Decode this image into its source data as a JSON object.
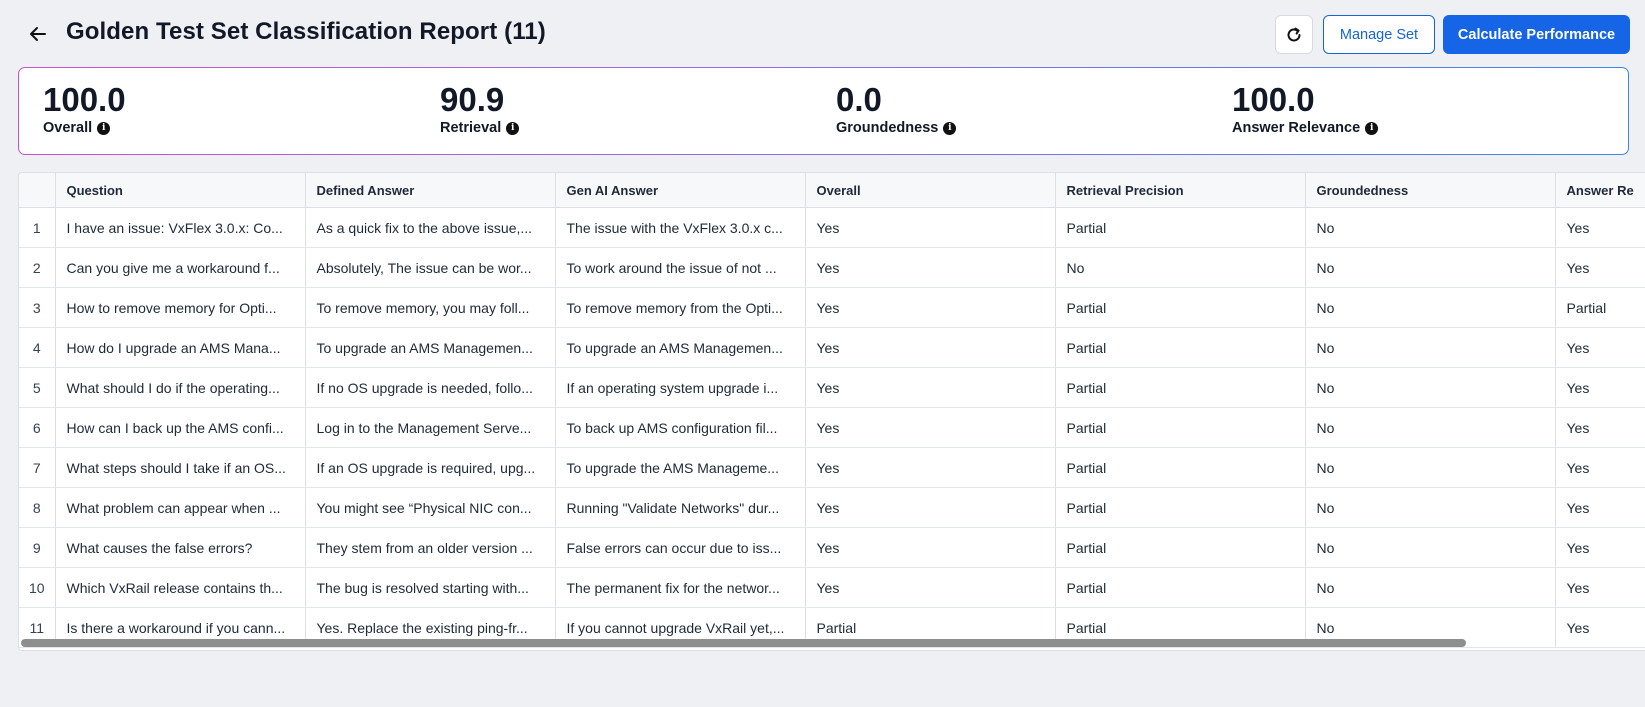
{
  "header": {
    "title": "Golden Test Set Classification Report (11)",
    "manage_label": "Manage Set",
    "calculate_label": "Calculate Performance"
  },
  "metrics": [
    {
      "value": "100.0",
      "label": "Overall"
    },
    {
      "value": "90.9",
      "label": "Retrieval"
    },
    {
      "value": "0.0",
      "label": "Groundedness"
    },
    {
      "value": "100.0",
      "label": "Answer Relevance"
    }
  ],
  "table": {
    "columns": [
      "",
      "Question",
      "Defined Answer",
      "Gen AI Answer",
      "Overall",
      "Retrieval Precision",
      "Groundedness",
      "Answer Re"
    ],
    "rows": [
      {
        "n": "1",
        "question": "I have an issue: VxFlex 3.0.x: Co...",
        "defined": "As a quick fix to the above issue,...",
        "gen": "The issue with the VxFlex 3.0.x c...",
        "overall": "Yes",
        "retrieval": "Partial",
        "ground": "No",
        "relevance": "Yes"
      },
      {
        "n": "2",
        "question": "Can you give me a workaround f...",
        "defined": "Absolutely, The issue can be wor...",
        "gen": "To work around the issue of not ...",
        "overall": "Yes",
        "retrieval": "No",
        "ground": "No",
        "relevance": "Yes"
      },
      {
        "n": "3",
        "question": "How to remove memory for Opti...",
        "defined": "To remove memory, you may foll...",
        "gen": "To remove memory from the Opti...",
        "overall": "Yes",
        "retrieval": "Partial",
        "ground": "No",
        "relevance": "Partial"
      },
      {
        "n": "4",
        "question": "How do I upgrade an AMS Mana...",
        "defined": "To upgrade an AMS Managemen...",
        "gen": "To upgrade an AMS Managemen...",
        "overall": "Yes",
        "retrieval": "Partial",
        "ground": "No",
        "relevance": "Yes"
      },
      {
        "n": "5",
        "question": "What should I do if the operating...",
        "defined": "If no OS upgrade is needed, follo...",
        "gen": "If an operating system upgrade i...",
        "overall": "Yes",
        "retrieval": "Partial",
        "ground": "No",
        "relevance": "Yes"
      },
      {
        "n": "6",
        "question": "How can I back up the AMS confi...",
        "defined": "Log in to the Management Serve...",
        "gen": "To back up AMS configuration fil...",
        "overall": "Yes",
        "retrieval": "Partial",
        "ground": "No",
        "relevance": "Yes"
      },
      {
        "n": "7",
        "question": "What steps should I take if an OS...",
        "defined": "If an OS upgrade is required, upg...",
        "gen": "To upgrade the AMS Manageme...",
        "overall": "Yes",
        "retrieval": "Partial",
        "ground": "No",
        "relevance": "Yes"
      },
      {
        "n": "8",
        "question": "What problem can appear when ...",
        "defined": "You might see “Physical NIC con...",
        "gen": "Running \"Validate Networks\" dur...",
        "overall": "Yes",
        "retrieval": "Partial",
        "ground": "No",
        "relevance": "Yes"
      },
      {
        "n": "9",
        "question": "What causes the false errors?",
        "defined": "They stem from an older version ...",
        "gen": "False errors can occur due to iss...",
        "overall": "Yes",
        "retrieval": "Partial",
        "ground": "No",
        "relevance": "Yes"
      },
      {
        "n": "10",
        "question": "Which VxRail release contains th...",
        "defined": "The bug is resolved starting with...",
        "gen": "The permanent fix for the networ...",
        "overall": "Yes",
        "retrieval": "Partial",
        "ground": "No",
        "relevance": "Yes"
      },
      {
        "n": "11",
        "question": "Is there a workaround if you cann...",
        "defined": "Yes. Replace the existing ping-fr...",
        "gen": "If you cannot upgrade VxRail yet,...",
        "overall": "Partial",
        "retrieval": "Partial",
        "ground": "No",
        "relevance": "Yes"
      }
    ]
  },
  "icons": {
    "back": "arrow-left-icon",
    "refresh": "refresh-icon",
    "info": "info-icon"
  },
  "colors": {
    "primary": "#1565e6",
    "background": "#eef0f3",
    "card_border_start": "#c654c8",
    "card_border_end": "#3f86e8"
  }
}
